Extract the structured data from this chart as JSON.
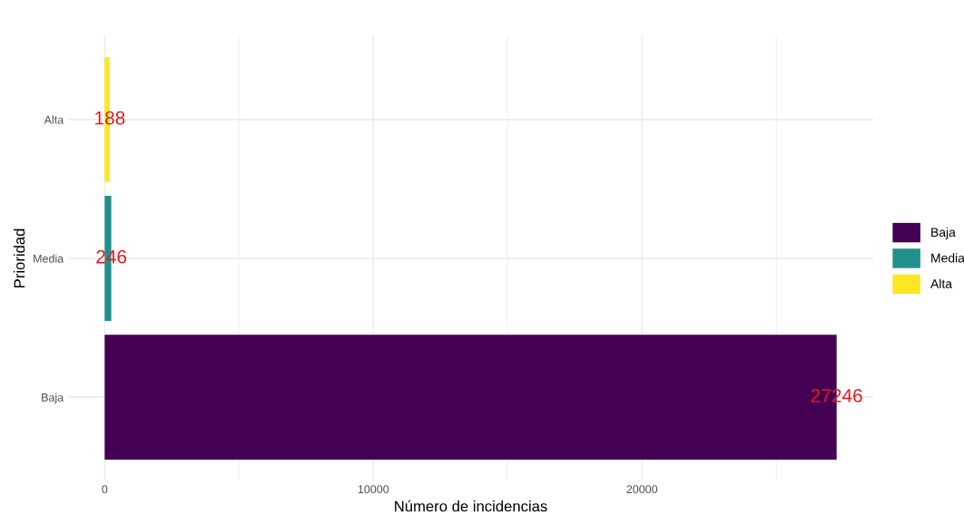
{
  "chart_data": {
    "type": "bar",
    "orientation": "horizontal",
    "xlabel": "Número de incidencias",
    "ylabel": "Prioridad",
    "categories": [
      "Alta",
      "Media",
      "Baja"
    ],
    "series": [
      {
        "name": "Baja",
        "color": "#440154",
        "values": [
          null,
          null,
          27246
        ]
      },
      {
        "name": "Media",
        "color": "#21908c",
        "values": [
          null,
          246,
          null
        ]
      },
      {
        "name": "Alta",
        "color": "#fde725",
        "values": [
          188,
          null,
          null
        ]
      }
    ],
    "xlim": [
      -1362,
      28608
    ],
    "xticks": [
      0,
      {
        "value": 5000,
        "label": null
      },
      10000,
      {
        "value": 15000,
        "label": null
      },
      20000,
      {
        "value": 25000,
        "label": null
      }
    ],
    "grid": true,
    "legend": "right",
    "data_labels": true
  }
}
